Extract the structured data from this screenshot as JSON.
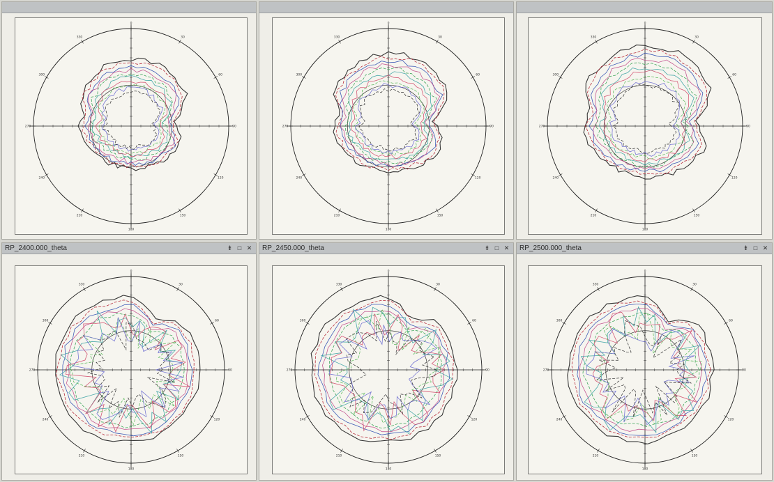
{
  "panels": [
    {
      "title": "",
      "show_controls": false
    },
    {
      "title": "",
      "show_controls": false
    },
    {
      "title": "",
      "show_controls": false
    },
    {
      "title": "RP_2400.000_theta",
      "show_controls": true
    },
    {
      "title": "RP_2450.000_theta",
      "show_controls": true
    },
    {
      "title": "RP_2500.000_theta",
      "show_controls": true
    }
  ],
  "controls": {
    "pin": "⇟",
    "maximize": "□",
    "close": "✕"
  },
  "angle_labels": [
    "0",
    "30",
    "60",
    "90",
    "120",
    "150",
    "180",
    "210",
    "240",
    "270",
    "300",
    "330"
  ],
  "series_colors": [
    "#222222",
    "#b0182a",
    "#2b4bb0",
    "#c04a8a",
    "#2fa04f",
    "#3aa3a3",
    "#d04a6a",
    "#58b858",
    "#6a6ad0",
    "#333333"
  ],
  "icons": [
    "pin-icon",
    "maximize-icon",
    "close-icon"
  ]
}
